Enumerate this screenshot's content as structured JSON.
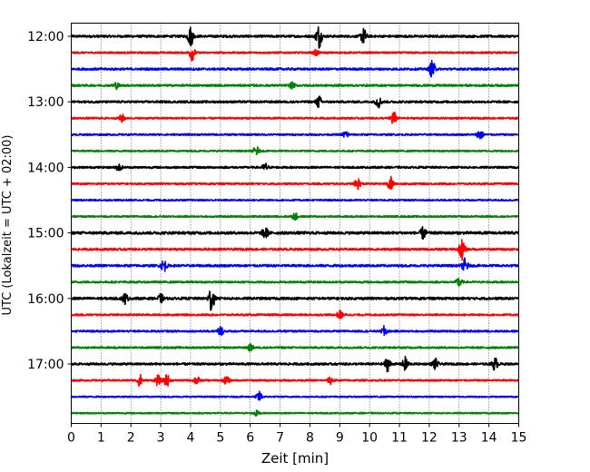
{
  "chart_data": {
    "type": "line",
    "chart_kind": "helicorder (seismogram traces)",
    "title": "",
    "xlabel": "Zeit  [min]",
    "ylabel": "UTC (Lokalzeit = UTC + 02:00)",
    "xlim": [
      0,
      15
    ],
    "x_ticks": [
      "0",
      "1",
      "2",
      "3",
      "4",
      "5",
      "6",
      "7",
      "8",
      "9",
      "10",
      "11",
      "12",
      "13",
      "14",
      "15"
    ],
    "y_ticks": [
      "12:00",
      "13:00",
      "14:00",
      "15:00",
      "16:00",
      "17:00"
    ],
    "x_grid": "dotted vertical lines at each minute",
    "legend": "none",
    "series_colors": [
      "#000000",
      "#ff0000",
      "#0000ff",
      "#008000"
    ],
    "series": [
      {
        "row_start": "12:00",
        "color": "#000000",
        "noise": 0.3,
        "events": [
          [
            4.0,
            2.5
          ],
          [
            8.3,
            3.0
          ],
          [
            9.8,
            2.0
          ]
        ]
      },
      {
        "row_start": "12:15",
        "color": "#ff0000",
        "noise": 0.22,
        "events": [
          [
            4.05,
            2.0
          ],
          [
            8.2,
            0.8
          ]
        ]
      },
      {
        "row_start": "12:30",
        "color": "#0000ff",
        "noise": 0.28,
        "events": [
          [
            12.1,
            2.2
          ]
        ]
      },
      {
        "row_start": "12:45",
        "color": "#008000",
        "noise": 0.26,
        "events": [
          [
            1.5,
            0.8
          ],
          [
            7.4,
            0.7
          ]
        ]
      },
      {
        "row_start": "13:00",
        "color": "#000000",
        "noise": 0.28,
        "events": [
          [
            8.3,
            1.5
          ],
          [
            10.3,
            1.4
          ]
        ]
      },
      {
        "row_start": "13:15",
        "color": "#ff0000",
        "noise": 0.22,
        "events": [
          [
            1.7,
            1.0
          ],
          [
            10.8,
            1.8
          ]
        ]
      },
      {
        "row_start": "13:30",
        "color": "#0000ff",
        "noise": 0.22,
        "events": [
          [
            9.2,
            1.0
          ],
          [
            13.7,
            1.5
          ]
        ]
      },
      {
        "row_start": "13:45",
        "color": "#008000",
        "noise": 0.2,
        "events": [
          [
            6.2,
            1.2
          ]
        ]
      },
      {
        "row_start": "14:00",
        "color": "#000000",
        "noise": 0.26,
        "events": [
          [
            1.6,
            0.9
          ],
          [
            6.5,
            1.0
          ]
        ]
      },
      {
        "row_start": "14:15",
        "color": "#ff0000",
        "noise": 0.22,
        "events": [
          [
            9.6,
            1.5
          ],
          [
            10.7,
            1.8
          ]
        ]
      },
      {
        "row_start": "14:30",
        "color": "#0000ff",
        "noise": 0.2,
        "events": []
      },
      {
        "row_start": "14:45",
        "color": "#008000",
        "noise": 0.22,
        "events": [
          [
            7.5,
            0.9
          ]
        ]
      },
      {
        "row_start": "15:00",
        "color": "#000000",
        "noise": 0.35,
        "events": [
          [
            6.5,
            1.5
          ],
          [
            11.8,
            1.5
          ]
        ]
      },
      {
        "row_start": "15:15",
        "color": "#ff0000",
        "noise": 0.28,
        "events": [
          [
            13.1,
            2.6
          ]
        ]
      },
      {
        "row_start": "15:30",
        "color": "#0000ff",
        "noise": 0.3,
        "events": [
          [
            3.1,
            1.5
          ],
          [
            13.2,
            1.8
          ]
        ]
      },
      {
        "row_start": "15:45",
        "color": "#008000",
        "noise": 0.24,
        "events": [
          [
            13.0,
            1.2
          ]
        ]
      },
      {
        "row_start": "16:00",
        "color": "#000000",
        "noise": 0.32,
        "events": [
          [
            1.8,
            1.3
          ],
          [
            3.0,
            1.0
          ],
          [
            4.7,
            3.5
          ]
        ]
      },
      {
        "row_start": "16:15",
        "color": "#ff0000",
        "noise": 0.24,
        "events": [
          [
            9.0,
            1.0
          ]
        ]
      },
      {
        "row_start": "16:30",
        "color": "#0000ff",
        "noise": 0.24,
        "events": [
          [
            5.0,
            1.2
          ],
          [
            10.5,
            1.3
          ]
        ]
      },
      {
        "row_start": "16:45",
        "color": "#008000",
        "noise": 0.24,
        "events": [
          [
            6.0,
            0.8
          ]
        ]
      },
      {
        "row_start": "17:00",
        "color": "#000000",
        "noise": 0.28,
        "events": [
          [
            10.6,
            1.8
          ],
          [
            11.2,
            1.8
          ],
          [
            12.2,
            1.4
          ],
          [
            14.2,
            1.6
          ]
        ]
      },
      {
        "row_start": "17:15",
        "color": "#ff0000",
        "noise": 0.22,
        "events": [
          [
            2.3,
            1.5
          ],
          [
            2.9,
            1.3
          ],
          [
            3.2,
            1.6
          ],
          [
            4.2,
            1.1
          ],
          [
            5.2,
            1.0
          ],
          [
            8.7,
            1.0
          ]
        ]
      },
      {
        "row_start": "17:30",
        "color": "#0000ff",
        "noise": 0.18,
        "events": [
          [
            6.3,
            1.3
          ]
        ]
      },
      {
        "row_start": "17:45",
        "color": "#008000",
        "noise": 0.18,
        "events": [
          [
            6.2,
            0.7
          ]
        ]
      }
    ]
  }
}
